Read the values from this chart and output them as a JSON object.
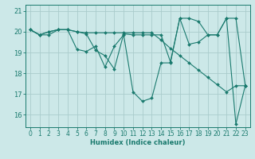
{
  "xlabel": "Humidex (Indice chaleur)",
  "background_color": "#cce8e8",
  "grid_color": "#aacccc",
  "line_color": "#1a7a6e",
  "xlim": [
    -0.5,
    23.5
  ],
  "ylim": [
    15.4,
    21.3
  ],
  "yticks": [
    16,
    17,
    18,
    19,
    20,
    21
  ],
  "xticks": [
    0,
    1,
    2,
    3,
    4,
    5,
    6,
    7,
    8,
    9,
    10,
    11,
    12,
    13,
    14,
    15,
    16,
    17,
    18,
    19,
    20,
    21,
    22,
    23
  ],
  "lines": [
    [
      20.1,
      19.85,
      19.85,
      20.1,
      20.1,
      19.15,
      19.05,
      19.3,
      18.3,
      19.3,
      19.85,
      17.1,
      16.65,
      16.8,
      18.5,
      18.5,
      20.65,
      19.4,
      19.5,
      19.85,
      19.85,
      20.65,
      15.55,
      17.4
    ],
    [
      20.1,
      19.85,
      20.0,
      20.1,
      20.1,
      20.0,
      19.9,
      19.1,
      18.85,
      18.2,
      19.9,
      19.85,
      19.85,
      19.85,
      19.85,
      18.55,
      20.65,
      20.65,
      20.5,
      19.85,
      19.85,
      20.65,
      20.65,
      17.4
    ],
    [
      20.1,
      19.85,
      20.0,
      20.1,
      20.1,
      20.0,
      19.95,
      19.95,
      19.95,
      19.95,
      19.95,
      19.95,
      19.95,
      19.95,
      19.6,
      19.2,
      18.85,
      18.5,
      18.15,
      17.8,
      17.45,
      17.1,
      17.4,
      17.4
    ]
  ]
}
